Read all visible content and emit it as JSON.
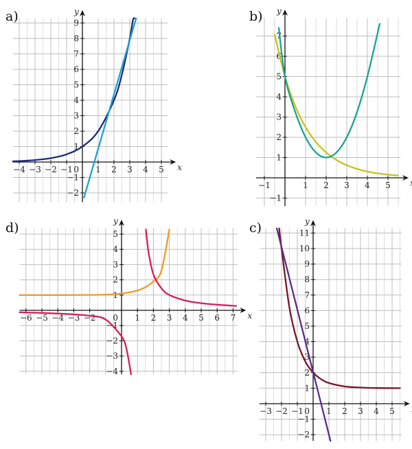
{
  "colors": {
    "grid": "#bdbdbd",
    "axis": "#111111"
  },
  "chart_data": [
    {
      "panel": "a)",
      "type": "line",
      "xlabel": "x",
      "ylabel": "y",
      "xlim": [
        -4.4,
        5.4
      ],
      "ylim": [
        -2.6,
        9.3
      ],
      "grid": true,
      "xticks": [
        -4,
        -3,
        -2,
        -1,
        1,
        2,
        3,
        4,
        5
      ],
      "yticks": [
        -2,
        -1,
        1,
        2,
        3,
        4,
        5,
        6,
        7,
        8,
        9
      ],
      "origin_label": "0",
      "series": [
        {
          "color": "#1f2a7a",
          "x": [
            -4.4,
            -4,
            -3,
            -2,
            -1,
            0,
            1,
            2,
            2.5,
            3,
            3.2,
            3.3
          ],
          "y": [
            0.05,
            0.06,
            0.13,
            0.25,
            0.5,
            1,
            2,
            4,
            5.66,
            8,
            9.19,
            9.3
          ]
        },
        {
          "color": "#1e9fd6",
          "x": [
            0.1,
            3.4
          ],
          "y": [
            -2.3,
            9.3
          ]
        }
      ]
    },
    {
      "panel": "b)",
      "type": "line",
      "xlabel": "x",
      "ylabel": "y",
      "xlim": [
        -1.4,
        5.6
      ],
      "ylim": [
        -1.4,
        7.9
      ],
      "grid": true,
      "xticks": [
        -1,
        1,
        2,
        3,
        4,
        5
      ],
      "yticks": [
        -1,
        1,
        2,
        3,
        4,
        5,
        6,
        7
      ],
      "origin_label": "",
      "series": [
        {
          "color": "#c9c21a",
          "x": [
            -0.5,
            0,
            0.5,
            1,
            1.5,
            2,
            2.5,
            3,
            3.5,
            4,
            4.5,
            5,
            5.5
          ],
          "y": [
            7.07,
            5,
            3.54,
            2.5,
            1.77,
            1.25,
            0.88,
            0.62,
            0.44,
            0.31,
            0.22,
            0.16,
            0.11
          ]
        },
        {
          "color": "#1aa48f",
          "x": [
            -0.3,
            0,
            0.5,
            1,
            1.5,
            2,
            2.5,
            3,
            3.5,
            4,
            4.6
          ],
          "y": [
            7.4,
            5,
            3.25,
            2,
            1.25,
            1,
            1.25,
            2,
            3.25,
            5,
            7.6
          ]
        }
      ]
    },
    {
      "panel": "d)",
      "type": "line",
      "xlabel": "x",
      "ylabel": "y",
      "xlim": [
        -6.4,
        7.3
      ],
      "ylim": [
        -4.2,
        5.4
      ],
      "grid": true,
      "xticks": [
        -6,
        -5,
        -4,
        -3,
        -2,
        1,
        2,
        3,
        4,
        5,
        6,
        7
      ],
      "yticks": [
        -4,
        -3,
        -2,
        -1,
        1,
        2,
        3,
        4,
        5
      ],
      "origin_label": "0",
      "series": [
        {
          "color": "#f39a21",
          "x": [
            -6.4,
            -4,
            -2,
            -1,
            0,
            1,
            1.5,
            2,
            2.5,
            3
          ],
          "y": [
            1,
            1,
            1.01,
            1.03,
            1.1,
            1.3,
            1.52,
            1.9,
            2.6,
            5.3
          ]
        },
        {
          "color": "#d81b60",
          "x": [
            1.53,
            1.7,
            2,
            2.5,
            3,
            4,
            5,
            6,
            7.2
          ],
          "y": [
            5.3,
            3.78,
            2.36,
            1.45,
            1.01,
            0.64,
            0.47,
            0.37,
            0.29
          ]
        },
        {
          "color": "#d81b60",
          "x": [
            -6.4,
            -5,
            -4,
            -3,
            -2,
            -1,
            0,
            0.3,
            0.6
          ],
          "y": [
            -0.13,
            -0.17,
            -0.21,
            -0.27,
            -0.36,
            -0.6,
            -1.71,
            -2.49,
            -4.2
          ]
        }
      ]
    },
    {
      "panel": "c)",
      "type": "line",
      "xlabel": "x",
      "ylabel": "y",
      "xlim": [
        -3.4,
        5.6
      ],
      "ylim": [
        -2.4,
        11.3
      ],
      "grid": true,
      "xticks": [
        -3,
        -2,
        -1,
        1,
        2,
        3,
        4,
        5
      ],
      "yticks": [
        -2,
        -1,
        1,
        2,
        3,
        4,
        5,
        6,
        7,
        8,
        9,
        10,
        11
      ],
      "origin_label": "0",
      "series": [
        {
          "color": "#7a1428",
          "x": [
            -2.15,
            -2,
            -1.5,
            -1,
            -0.5,
            0,
            0.5,
            1,
            2,
            3,
            4,
            5.5
          ],
          "y": [
            11.3,
            10,
            6.19,
            4,
            2.73,
            2,
            1.58,
            1.33,
            1.11,
            1.04,
            1.01,
            1
          ]
        },
        {
          "color": "#5b2c8f",
          "x": [
            -2.3,
            1.1
          ],
          "y": [
            11.3,
            -2.4
          ]
        }
      ]
    }
  ]
}
